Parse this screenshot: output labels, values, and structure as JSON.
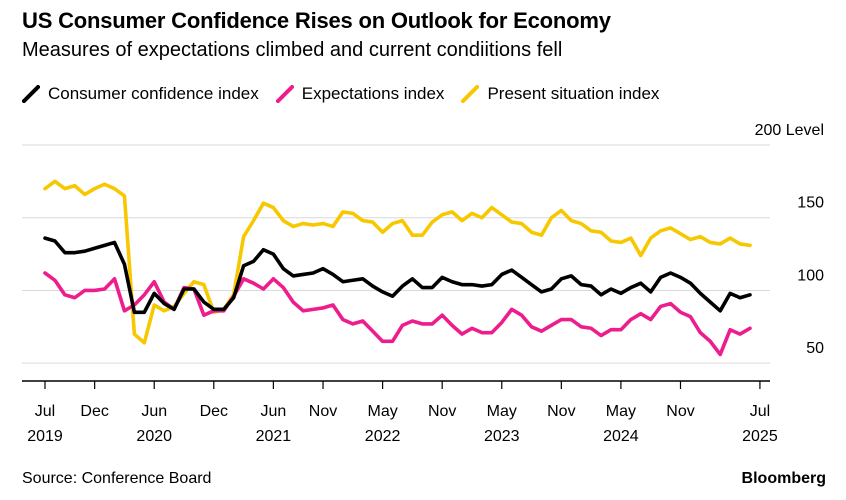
{
  "header": {
    "title": "US Consumer Confidence Rises on Outlook for Economy",
    "subtitle": "Measures of expectations climbed and current condiitions fell"
  },
  "footer": {
    "source": "Source: Conference Board",
    "brand": "Bloomberg"
  },
  "colors": {
    "confidence": "#000000",
    "expectations": "#ee1d8e",
    "present": "#f7c800",
    "grid": "#d9d9d9",
    "axis": "#000000"
  },
  "chart_data": {
    "type": "line",
    "title": "US Consumer Confidence Rises on Outlook for Economy",
    "subtitle": "Measures of expectations climbed and current condiitions fell",
    "xlabel": "",
    "ylabel": "Level",
    "y_unit_label": "200 Level",
    "ylim": [
      35,
      200
    ],
    "yticks": [
      50,
      100,
      150,
      200
    ],
    "grid": true,
    "legend_position": "top-left",
    "x_start": "2019-07",
    "x_end": "2025-07",
    "x_ticks": [
      {
        "month": 0,
        "label": "Jul",
        "year": "2019"
      },
      {
        "month": 5,
        "label": "Dec",
        "year": ""
      },
      {
        "month": 11,
        "label": "Jun",
        "year": "2020"
      },
      {
        "month": 17,
        "label": "Dec",
        "year": ""
      },
      {
        "month": 23,
        "label": "Jun",
        "year": "2021"
      },
      {
        "month": 28,
        "label": "Nov",
        "year": ""
      },
      {
        "month": 34,
        "label": "May",
        "year": "2022"
      },
      {
        "month": 40,
        "label": "Nov",
        "year": ""
      },
      {
        "month": 46,
        "label": "May",
        "year": "2023"
      },
      {
        "month": 52,
        "label": "Nov",
        "year": ""
      },
      {
        "month": 58,
        "label": "May",
        "year": "2024"
      },
      {
        "month": 64,
        "label": "Nov",
        "year": ""
      },
      {
        "month": 72,
        "label": "Jul",
        "year": "2025"
      }
    ],
    "series": [
      {
        "name": "Consumer confidence index",
        "key": "confidence",
        "values": [
          136,
          134,
          126,
          126,
          127,
          129,
          131,
          133,
          118,
          85,
          85,
          98,
          91,
          87,
          101,
          101,
          92,
          87,
          87,
          95,
          117,
          120,
          128,
          125,
          115,
          110,
          111,
          112,
          115,
          111,
          106,
          107,
          108,
          103,
          99,
          96,
          103,
          108,
          102,
          102,
          109,
          106,
          104,
          104,
          103,
          104,
          111,
          114,
          109,
          104,
          99,
          101,
          108,
          110,
          104,
          103,
          97,
          101,
          98,
          102,
          105,
          99,
          109,
          112,
          109,
          105,
          98,
          92,
          86,
          98,
          95,
          97
        ]
      },
      {
        "name": "Expectations index",
        "key": "expectations",
        "values": [
          112,
          107,
          97,
          95,
          100,
          100,
          101,
          108,
          86,
          90,
          97,
          106,
          92,
          87,
          102,
          101,
          83,
          86,
          86,
          96,
          108,
          105,
          101,
          108,
          102,
          92,
          86,
          87,
          88,
          90,
          80,
          77,
          79,
          72,
          65,
          65,
          76,
          79,
          77,
          77,
          83,
          76,
          70,
          74,
          71,
          71,
          78,
          87,
          83,
          75,
          72,
          76,
          80,
          80,
          75,
          74,
          69,
          73,
          73,
          80,
          84,
          80,
          89,
          91,
          85,
          82,
          71,
          65,
          56,
          73,
          70,
          74
        ]
      },
      {
        "name": "Present situation index",
        "key": "present",
        "values": [
          170,
          175,
          170,
          172,
          166,
          170,
          173,
          170,
          165,
          70,
          64,
          90,
          86,
          89,
          98,
          106,
          104,
          85,
          87,
          97,
          137,
          148,
          160,
          157,
          148,
          144,
          146,
          145,
          146,
          144,
          154,
          153,
          148,
          147,
          140,
          146,
          148,
          138,
          138,
          147,
          152,
          154,
          148,
          153,
          150,
          157,
          152,
          147,
          146,
          140,
          138,
          150,
          155,
          148,
          146,
          141,
          140,
          134,
          133,
          136,
          124,
          136,
          141,
          143,
          139,
          135,
          137,
          133,
          132,
          136,
          132,
          131
        ]
      }
    ]
  }
}
